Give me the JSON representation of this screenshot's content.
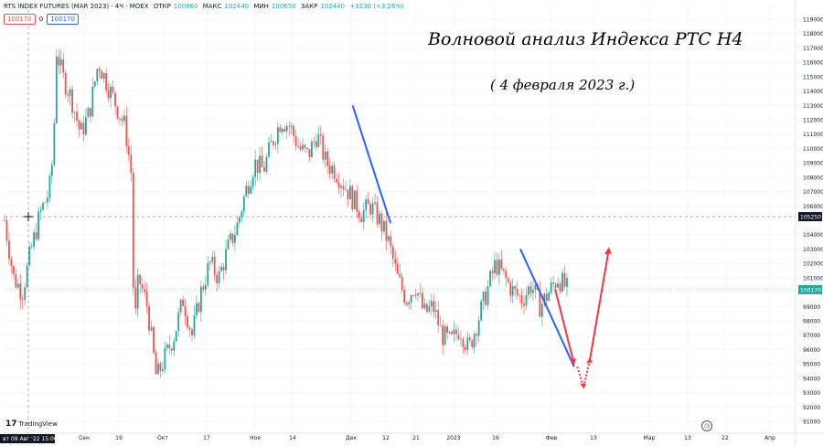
{
  "header": {
    "instrument": "RTS INDEX FUTURES (MAR 2023) · 4Ч · MOEX",
    "open_label": "ОТКР",
    "open_value": "100660",
    "high_label": "МАКС",
    "high_value": "102440",
    "low_label": "МИН",
    "low_value": "100650",
    "close_label": "ЗАКР",
    "close_value": "102440",
    "change": "+3230 (+3.26%)",
    "sell_price": "100170",
    "spread": "0",
    "buy_price": "100170"
  },
  "annotation": {
    "title": "Волновой анализ Индекса РТС Н4",
    "subtitle": "( 4 февраля 2023 г.)"
  },
  "branding": {
    "logo_text": "TradingView",
    "logo_mark": "17"
  },
  "cursor": {
    "date_label": "вт 09 Авг '22  15:00",
    "price_label": "105250"
  },
  "chart_data": {
    "type": "candlestick",
    "title": "",
    "xlabel": "",
    "ylabel": "",
    "ylim": [
      90000,
      120000
    ],
    "y_ticks": [
      91000,
      92000,
      93000,
      94000,
      95000,
      96000,
      97000,
      98000,
      99000,
      100000,
      101000,
      102000,
      103000,
      104000,
      105000,
      106000,
      107000,
      108000,
      109000,
      110000,
      111000,
      112000,
      113000,
      114000,
      115000,
      116000,
      117000,
      118000,
      119000
    ],
    "y_tick_labels": [
      "91000",
      "92000",
      "93000",
      "94000",
      "95000",
      "96000",
      "97000",
      "98000",
      "99000",
      "",
      "101000",
      "102000",
      "103000",
      "104000",
      "",
      "106000",
      "107000",
      "108000",
      "109000",
      "110000",
      "111000",
      "112000",
      "113000",
      "114000",
      "115000",
      "116000",
      "117000",
      "118000",
      "119000"
    ],
    "x_ticks": [
      "Сен",
      "19",
      "Окт",
      "17",
      "Ноя",
      "14",
      "Дек",
      "12",
      "21",
      "2023",
      "16",
      "Фев",
      "13",
      "Мар",
      "13",
      "22",
      "Апр"
    ],
    "last_price": "100170",
    "last_price_color": "#26a69a",
    "crosshair_price": 105250,
    "price_path": [
      [
        0,
        105000
      ],
      [
        0.02,
        101000
      ],
      [
        0.04,
        100000
      ],
      [
        0.06,
        103000
      ],
      [
        0.08,
        105500
      ],
      [
        0.1,
        107000
      ],
      [
        0.11,
        110000
      ],
      [
        0.115,
        117000
      ],
      [
        0.13,
        115000
      ],
      [
        0.15,
        113500
      ],
      [
        0.17,
        111000
      ],
      [
        0.19,
        112500
      ],
      [
        0.21,
        116000
      ],
      [
        0.23,
        114500
      ],
      [
        0.25,
        113000
      ],
      [
        0.27,
        111500
      ],
      [
        0.285,
        108000
      ],
      [
        0.29,
        97000
      ],
      [
        0.3,
        101000
      ],
      [
        0.32,
        99000
      ],
      [
        0.34,
        94000
      ],
      [
        0.36,
        95500
      ],
      [
        0.38,
        97000
      ],
      [
        0.4,
        99500
      ],
      [
        0.42,
        97000
      ],
      [
        0.44,
        100000
      ],
      [
        0.46,
        102000
      ],
      [
        0.48,
        101000
      ],
      [
        0.5,
        103000
      ],
      [
        0.52,
        104500
      ],
      [
        0.54,
        107000
      ],
      [
        0.56,
        109000
      ],
      [
        0.58,
        108500
      ],
      [
        0.6,
        110500
      ],
      [
        0.62,
        112000
      ],
      [
        0.64,
        111500
      ],
      [
        0.66,
        110000
      ],
      [
        0.68,
        109500
      ],
      [
        0.7,
        111000
      ],
      [
        0.72,
        109000
      ],
      [
        0.74,
        108500
      ],
      [
        0.76,
        107500
      ],
      [
        0.78,
        106500
      ],
      [
        0.8,
        105500
      ],
      [
        0.82,
        106000
      ],
      [
        0.84,
        105000
      ],
      [
        0.86,
        103500
      ],
      [
        0.88,
        101000
      ],
      [
        0.9,
        99500
      ],
      [
        0.92,
        100500
      ],
      [
        0.94,
        98500
      ],
      [
        0.96,
        99000
      ],
      [
        0.98,
        97000
      ],
      [
        1.0,
        96500
      ],
      [
        1.02,
        97500
      ],
      [
        1.04,
        96000
      ],
      [
        1.06,
        98000
      ],
      [
        1.08,
        100000
      ],
      [
        1.1,
        102000
      ],
      [
        1.12,
        101000
      ],
      [
        1.14,
        100000
      ],
      [
        1.16,
        99500
      ],
      [
        1.18,
        100500
      ],
      [
        1.2,
        99000
      ],
      [
        1.22,
        100000
      ],
      [
        1.24,
        101000
      ],
      [
        1.26,
        100200
      ]
    ],
    "wave_lines": [
      {
        "color": "#2962ff",
        "from": [
          110,
          113000
        ],
        "to": [
          122,
          104800
        ]
      },
      {
        "color": "#2962ff",
        "from": [
          163,
          103000
        ],
        "to": [
          180,
          94800
        ]
      },
      {
        "color": "#f23645",
        "from": [
          174,
          100200
        ],
        "to": [
          180,
          95000
        ]
      },
      {
        "color": "#f23645",
        "from": [
          181,
          94800
        ],
        "to": [
          183,
          93400
        ],
        "dotted": true
      },
      {
        "color": "#f23645",
        "from": [
          183,
          93400
        ],
        "to": [
          185,
          95300
        ],
        "dotted": true
      },
      {
        "color": "#f23645",
        "from": [
          185,
          95300
        ],
        "to": [
          191,
          103000
        ]
      }
    ]
  }
}
